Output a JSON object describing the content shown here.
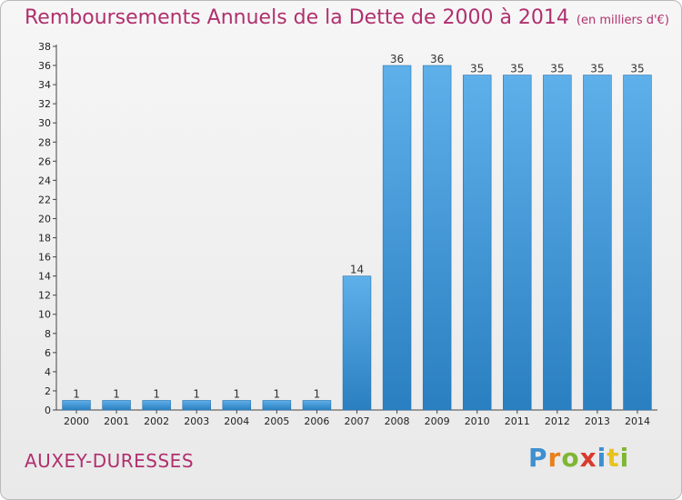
{
  "title": "Remboursements Annuels de la Dette de 2000 à 2014",
  "subtitle": "(en milliers d'€)",
  "commune": "AUXEY-DURESSES",
  "brand": {
    "name": "Proxiti"
  },
  "colors": {
    "title": "#b0306e",
    "bar_top": "#5eb0ea",
    "bar_bottom": "#2a7fc0"
  },
  "chart_data": {
    "type": "bar",
    "categories": [
      "2000",
      "2001",
      "2002",
      "2003",
      "2004",
      "2005",
      "2006",
      "2007",
      "2008",
      "2009",
      "2010",
      "2011",
      "2012",
      "2013",
      "2014"
    ],
    "values": [
      1,
      1,
      1,
      1,
      1,
      1,
      1,
      14,
      36,
      36,
      35,
      35,
      35,
      35,
      35
    ],
    "title": "Remboursements Annuels de la Dette de 2000 à 2014",
    "subtitle": "(en milliers d'€)",
    "ylim": [
      0,
      38
    ],
    "yticks": [
      0,
      2,
      4,
      6,
      8,
      10,
      12,
      14,
      16,
      18,
      20,
      22,
      24,
      26,
      28,
      30,
      32,
      34,
      36,
      38
    ],
    "grid": false,
    "legend": "none"
  }
}
